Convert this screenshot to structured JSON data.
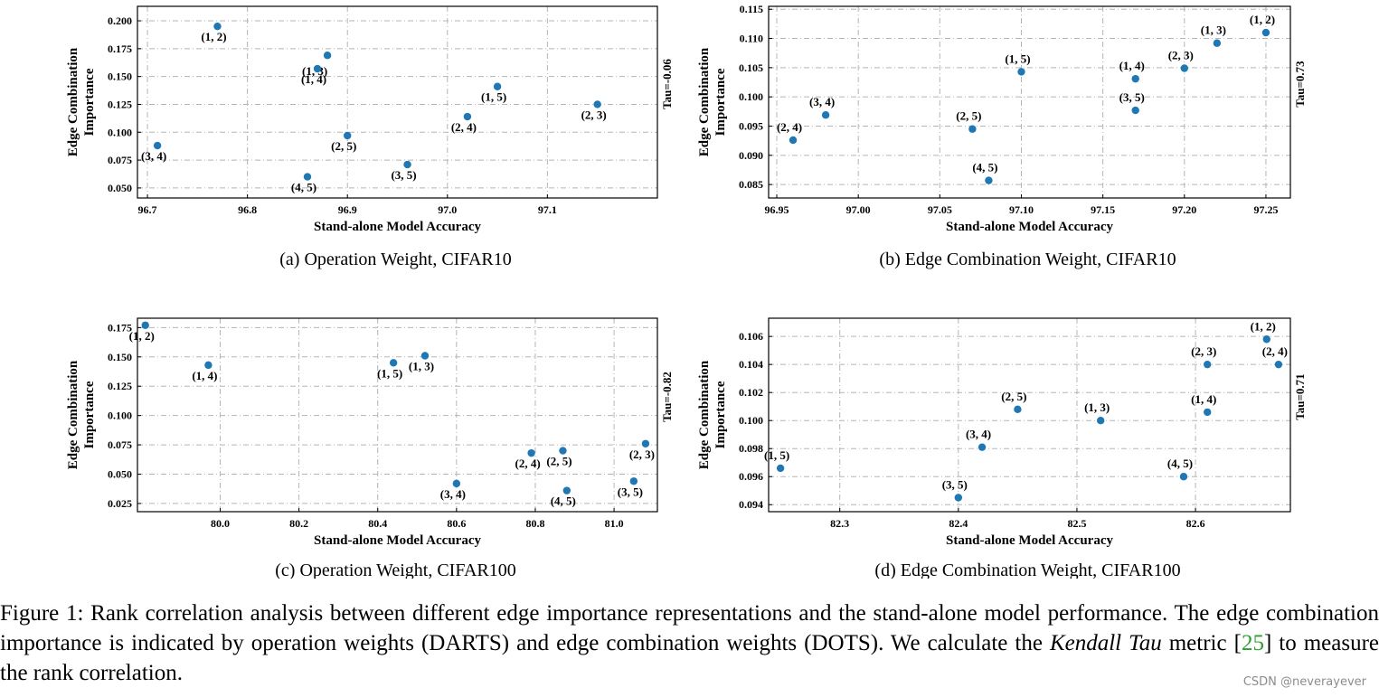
{
  "chart_data": [
    {
      "type": "scatter",
      "id": "a",
      "caption": "(a) Operation Weight, CIFAR10",
      "xlabel": "Stand-alone Model Accuracy",
      "ylabel_lines": [
        "Edge Combination",
        "Importance"
      ],
      "tau": "Tau=-0.06",
      "xlim": [
        96.69,
        97.21
      ],
      "ylim": [
        0.041,
        0.213
      ],
      "xticks": [
        96.7,
        96.8,
        96.9,
        97.0,
        97.1
      ],
      "xtick_labels": [
        "96.7",
        "96.8",
        "96.9",
        "97.0",
        "97.1"
      ],
      "yticks": [
        0.05,
        0.075,
        0.1,
        0.125,
        0.15,
        0.175,
        0.2
      ],
      "ytick_labels": [
        "0.050",
        "0.075",
        "0.100",
        "0.125",
        "0.150",
        "0.175",
        "0.200"
      ],
      "points": [
        {
          "label": "(1, 2)",
          "x": 96.77,
          "y": 0.195,
          "pos": "below"
        },
        {
          "label": "(1, 3)",
          "x": 96.88,
          "y": 0.169,
          "pos": "belowright"
        },
        {
          "label": "(1, 4)",
          "x": 96.87,
          "y": 0.157,
          "pos": "below"
        },
        {
          "label": "(1, 5)",
          "x": 97.05,
          "y": 0.141,
          "pos": "below"
        },
        {
          "label": "(2, 3)",
          "x": 97.15,
          "y": 0.125,
          "pos": "below"
        },
        {
          "label": "(2, 4)",
          "x": 97.02,
          "y": 0.114,
          "pos": "below"
        },
        {
          "label": "(2, 5)",
          "x": 96.9,
          "y": 0.097,
          "pos": "below"
        },
        {
          "label": "(3, 4)",
          "x": 96.71,
          "y": 0.088,
          "pos": "below"
        },
        {
          "label": "(3, 5)",
          "x": 96.96,
          "y": 0.071,
          "pos": "below"
        },
        {
          "label": "(4, 5)",
          "x": 96.86,
          "y": 0.06,
          "pos": "below"
        }
      ]
    },
    {
      "type": "scatter",
      "id": "b",
      "caption": "(b) Edge Combination Weight, CIFAR10",
      "xlabel": "Stand-alone Model Accuracy",
      "ylabel_lines": [
        "Edge Combination",
        "Importance"
      ],
      "tau": "Tau=0.73",
      "xlim": [
        96.945,
        97.265
      ],
      "ylim": [
        0.0827,
        0.1155
      ],
      "xticks": [
        96.95,
        97.0,
        97.05,
        97.1,
        97.15,
        97.2,
        97.25
      ],
      "xtick_labels": [
        "96.95",
        "97.00",
        "97.05",
        "97.10",
        "97.15",
        "97.20",
        "97.25"
      ],
      "yticks": [
        0.085,
        0.09,
        0.095,
        0.1,
        0.105,
        0.11,
        0.115
      ],
      "ytick_labels": [
        "0.085",
        "0.090",
        "0.095",
        "0.100",
        "0.105",
        "0.110",
        "0.115"
      ],
      "points": [
        {
          "label": "(1, 2)",
          "x": 97.25,
          "y": 0.111,
          "pos": "above"
        },
        {
          "label": "(1, 3)",
          "x": 97.22,
          "y": 0.1092,
          "pos": "above"
        },
        {
          "label": "(2, 3)",
          "x": 97.2,
          "y": 0.1049,
          "pos": "above"
        },
        {
          "label": "(1, 5)",
          "x": 97.1,
          "y": 0.1043,
          "pos": "above"
        },
        {
          "label": "(1, 4)",
          "x": 97.17,
          "y": 0.1031,
          "pos": "above"
        },
        {
          "label": "(3, 5)",
          "x": 97.17,
          "y": 0.0977,
          "pos": "above"
        },
        {
          "label": "(3, 4)",
          "x": 96.98,
          "y": 0.0969,
          "pos": "above"
        },
        {
          "label": "(2, 5)",
          "x": 97.07,
          "y": 0.0945,
          "pos": "above"
        },
        {
          "label": "(2, 4)",
          "x": 96.96,
          "y": 0.0926,
          "pos": "above"
        },
        {
          "label": "(4, 5)",
          "x": 97.08,
          "y": 0.0857,
          "pos": "above"
        }
      ]
    },
    {
      "type": "scatter",
      "id": "c",
      "caption": "(c) Operation Weight, CIFAR100",
      "xlabel": "Stand-alone Model Accuracy",
      "ylabel_lines": [
        "Edge Combination",
        "Importance"
      ],
      "tau": "Tau=-0.82",
      "xlim": [
        79.79,
        81.11
      ],
      "ylim": [
        0.018,
        0.183
      ],
      "xticks": [
        80.0,
        80.2,
        80.4,
        80.6,
        80.8,
        81.0
      ],
      "xtick_labels": [
        "80.0",
        "80.2",
        "80.4",
        "80.6",
        "80.8",
        "81.0"
      ],
      "yticks": [
        0.025,
        0.05,
        0.075,
        0.1,
        0.125,
        0.15,
        0.175
      ],
      "ytick_labels": [
        "0.025",
        "0.050",
        "0.075",
        "0.100",
        "0.125",
        "0.150",
        "0.175"
      ],
      "points": [
        {
          "label": "(1, 2)",
          "x": 79.81,
          "y": 0.177,
          "pos": "below"
        },
        {
          "label": "(1, 4)",
          "x": 79.97,
          "y": 0.143,
          "pos": "below"
        },
        {
          "label": "(1, 5)",
          "x": 80.44,
          "y": 0.145,
          "pos": "below"
        },
        {
          "label": "(1, 3)",
          "x": 80.52,
          "y": 0.151,
          "pos": "below"
        },
        {
          "label": "(3, 4)",
          "x": 80.6,
          "y": 0.042,
          "pos": "below"
        },
        {
          "label": "(2, 4)",
          "x": 80.79,
          "y": 0.068,
          "pos": "below"
        },
        {
          "label": "(2, 5)",
          "x": 80.87,
          "y": 0.07,
          "pos": "below"
        },
        {
          "label": "(4, 5)",
          "x": 80.88,
          "y": 0.036,
          "pos": "below"
        },
        {
          "label": "(3, 5)",
          "x": 81.05,
          "y": 0.044,
          "pos": "below"
        },
        {
          "label": "(2, 3)",
          "x": 81.08,
          "y": 0.076,
          "pos": "below"
        }
      ]
    },
    {
      "type": "scatter",
      "id": "d",
      "caption": "(d) Edge Combination Weight, CIFAR100",
      "xlabel": "Stand-alone Model Accuracy",
      "ylabel_lines": [
        "Edge Combination",
        "Importance"
      ],
      "tau": "Tau=0.71",
      "xlim": [
        82.24,
        82.68
      ],
      "ylim": [
        0.0935,
        0.1073
      ],
      "xticks": [
        82.3,
        82.4,
        82.5,
        82.6
      ],
      "xtick_labels": [
        "82.3",
        "82.4",
        "82.5",
        "82.6"
      ],
      "yticks": [
        0.094,
        0.096,
        0.098,
        0.1,
        0.102,
        0.104,
        0.106
      ],
      "ytick_labels": [
        "0.094",
        "0.096",
        "0.098",
        "0.100",
        "0.102",
        "0.104",
        "0.106"
      ],
      "points": [
        {
          "label": "(1, 2)",
          "x": 82.66,
          "y": 0.1058,
          "pos": "above"
        },
        {
          "label": "(2, 3)",
          "x": 82.61,
          "y": 0.104,
          "pos": "above"
        },
        {
          "label": "(2, 4)",
          "x": 82.67,
          "y": 0.104,
          "pos": "above"
        },
        {
          "label": "(2, 5)",
          "x": 82.45,
          "y": 0.1008,
          "pos": "above"
        },
        {
          "label": "(1, 3)",
          "x": 82.52,
          "y": 0.1,
          "pos": "above"
        },
        {
          "label": "(1, 4)",
          "x": 82.61,
          "y": 0.1006,
          "pos": "above"
        },
        {
          "label": "(3, 4)",
          "x": 82.42,
          "y": 0.0981,
          "pos": "above"
        },
        {
          "label": "(4, 5)",
          "x": 82.59,
          "y": 0.096,
          "pos": "above"
        },
        {
          "label": "(1, 5)",
          "x": 82.25,
          "y": 0.0966,
          "pos": "above"
        },
        {
          "label": "(3, 5)",
          "x": 82.4,
          "y": 0.0945,
          "pos": "above"
        }
      ]
    }
  ],
  "caption": {
    "part1": "Figure 1: Rank correlation analysis between different edge importance representations and the stand-alone model performance. The edge combination importance is indicated by operation weights (DARTS) and edge combination weights (DOTS). We calculate the ",
    "italic": "Kendall Tau",
    "part2": " metric [",
    "ref": "25",
    "part3": "] to measure the rank correlation."
  },
  "watermark": "CSDN @neverayever",
  "colors": {
    "marker": "#1f77b4",
    "reference": "#2ca02c"
  }
}
